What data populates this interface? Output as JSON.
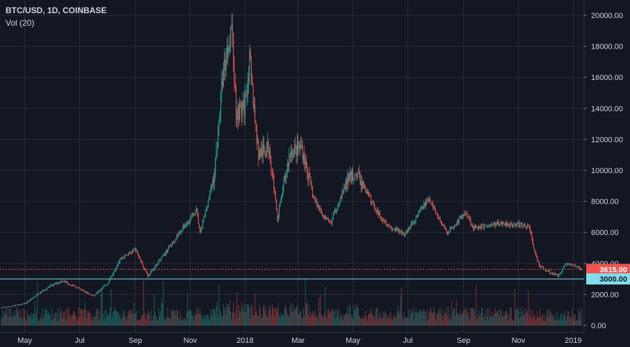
{
  "header": {
    "title": "BTC/USD, 1D, COINBASE",
    "volume_label": "Vol (20)"
  },
  "chart_data": {
    "type": "candlestick",
    "symbol": "BTC/USD",
    "interval": "1D",
    "exchange": "COINBASE",
    "ylim": [
      0,
      20000
    ],
    "y_ticks": [
      "20000.00",
      "18000.00",
      "16000.00",
      "14000.00",
      "12000.00",
      "10000.00",
      "8000.00",
      "6000.00",
      "4000.00",
      "2000.00",
      "0.00"
    ],
    "y_tick_values": [
      20000,
      18000,
      16000,
      14000,
      12000,
      10000,
      8000,
      6000,
      4000,
      2000,
      0
    ],
    "x_ticks": [
      {
        "label": "May",
        "date": "2017-05-01"
      },
      {
        "label": "Jul",
        "date": "2017-07-01"
      },
      {
        "label": "Sep",
        "date": "2017-09-01"
      },
      {
        "label": "Nov",
        "date": "2017-11-01"
      },
      {
        "label": "2018",
        "date": "2018-01-01"
      },
      {
        "label": "Mar",
        "date": "2018-03-01"
      },
      {
        "label": "May",
        "date": "2018-05-01"
      },
      {
        "label": "Jul",
        "date": "2018-07-01"
      },
      {
        "label": "Sep",
        "date": "2018-09-01"
      },
      {
        "label": "Nov",
        "date": "2018-11-01"
      },
      {
        "label": "2019",
        "date": "2019-01-01"
      }
    ],
    "date_range": [
      "2017-04-05",
      "2019-01-10"
    ],
    "close_keypoints": [
      [
        "2017-04-05",
        1130
      ],
      [
        "2017-05-01",
        1400
      ],
      [
        "2017-05-25",
        2400
      ],
      [
        "2017-06-12",
        2900
      ],
      [
        "2017-07-16",
        1900
      ],
      [
        "2017-08-01",
        2700
      ],
      [
        "2017-08-15",
        4300
      ],
      [
        "2017-09-01",
        4900
      ],
      [
        "2017-09-15",
        3200
      ],
      [
        "2017-10-01",
        4400
      ],
      [
        "2017-10-20",
        6000
      ],
      [
        "2017-11-08",
        7400
      ],
      [
        "2017-11-12",
        5900
      ],
      [
        "2017-11-28",
        9800
      ],
      [
        "2017-12-07",
        16000
      ],
      [
        "2017-12-17",
        19500
      ],
      [
        "2017-12-22",
        13800
      ],
      [
        "2017-12-31",
        14000
      ],
      [
        "2018-01-06",
        17000
      ],
      [
        "2018-01-16",
        11000
      ],
      [
        "2018-01-28",
        11500
      ],
      [
        "2018-02-06",
        6900
      ],
      [
        "2018-02-20",
        11200
      ],
      [
        "2018-03-05",
        11500
      ],
      [
        "2018-03-18",
        8200
      ],
      [
        "2018-04-01",
        6800
      ],
      [
        "2018-04-06",
        6600
      ],
      [
        "2018-04-25",
        9400
      ],
      [
        "2018-05-05",
        9800
      ],
      [
        "2018-05-28",
        7300
      ],
      [
        "2018-06-12",
        6300
      ],
      [
        "2018-06-28",
        5900
      ],
      [
        "2018-07-24",
        8200
      ],
      [
        "2018-08-10",
        6300
      ],
      [
        "2018-08-14",
        6000
      ],
      [
        "2018-09-04",
        7300
      ],
      [
        "2018-09-12",
        6300
      ],
      [
        "2018-10-15",
        6600
      ],
      [
        "2018-11-13",
        6400
      ],
      [
        "2018-11-20",
        4500
      ],
      [
        "2018-11-25",
        3800
      ],
      [
        "2018-12-07",
        3400
      ],
      [
        "2018-12-15",
        3200
      ],
      [
        "2018-12-24",
        4000
      ],
      [
        "2019-01-05",
        3800
      ],
      [
        "2019-01-10",
        3615
      ]
    ],
    "last_price": {
      "value": 3615,
      "label": "3615.00",
      "color": "#ef5350"
    },
    "horizontal_line": {
      "value": 3000,
      "label": "3000.00",
      "color": "#80deea"
    }
  },
  "colors": {
    "background": "#131722",
    "up": "#26a69a",
    "down": "#ef5350",
    "grid": "#2a2e39",
    "text": "#d1d4dc"
  }
}
